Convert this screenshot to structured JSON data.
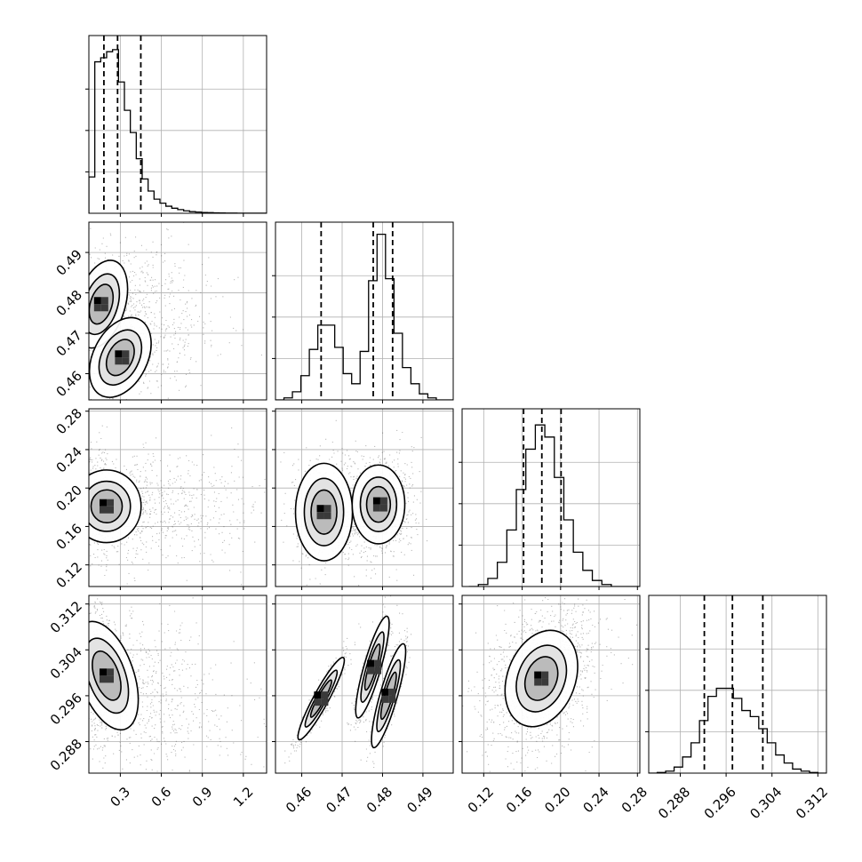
{
  "chart_data": {
    "type": "corner",
    "ylim_note": "",
    "params": [
      {
        "ticks": [
          0.3,
          0.6,
          0.9,
          1.2
        ],
        "tick_labels": [
          "0.3",
          "0.6",
          "0.9",
          "1.2"
        ],
        "range": [
          0.07,
          1.37
        ],
        "quantiles": [
          0.18,
          0.28,
          0.45
        ],
        "hist": [
          0.18,
          0.75,
          0.77,
          0.8,
          0.81,
          0.65,
          0.51,
          0.4,
          0.27,
          0.17,
          0.11,
          0.07,
          0.05,
          0.035,
          0.025,
          0.018,
          0.012,
          0.008,
          0.006,
          0.004,
          0.003,
          0.002,
          0.0015,
          0.001,
          0.001,
          0.0005,
          0.0005,
          0.0003,
          0.0002,
          0.0002
        ],
        "hist_range": [
          0.07,
          1.37
        ]
      },
      {
        "ticks": [
          0.46,
          0.47,
          0.48,
          0.49
        ],
        "tick_labels": [
          "0.46",
          "0.47",
          "0.48",
          "0.49"
        ],
        "range": [
          0.4535,
          0.4975
        ],
        "quantiles": [
          0.4648,
          0.4777,
          0.4825
        ],
        "hist": [
          0.0,
          0.01,
          0.04,
          0.12,
          0.25,
          0.37,
          0.37,
          0.26,
          0.13,
          0.08,
          0.24,
          0.59,
          0.82,
          0.6,
          0.33,
          0.16,
          0.08,
          0.03,
          0.01,
          0.0,
          0.0
        ],
        "hist_range": [
          0.4535,
          0.4975
        ]
      },
      {
        "ticks": [
          0.12,
          0.16,
          0.2,
          0.24,
          0.28
        ],
        "tick_labels": [
          "0.12",
          "0.16",
          "0.20",
          "0.24",
          "0.28"
        ],
        "range": [
          0.0975,
          0.2825
        ],
        "quantiles": [
          0.1615,
          0.1805,
          0.2005
        ],
        "hist": [
          0.0,
          0.01,
          0.04,
          0.12,
          0.28,
          0.48,
          0.68,
          0.8,
          0.74,
          0.54,
          0.33,
          0.17,
          0.08,
          0.03,
          0.01,
          0.0,
          0.0,
          0.0
        ],
        "hist_range": [
          0.1045,
          0.2825
        ]
      },
      {
        "ticks": [
          0.288,
          0.296,
          0.304,
          0.312
        ],
        "tick_labels": [
          "0.288",
          "0.296",
          "0.304",
          "0.312"
        ],
        "range": [
          0.2825,
          0.3135
        ],
        "quantiles": [
          0.2922,
          0.2971,
          0.3024
        ],
        "hist": [
          0.0,
          0.003,
          0.01,
          0.03,
          0.08,
          0.15,
          0.26,
          0.38,
          0.42,
          0.42,
          0.37,
          0.31,
          0.28,
          0.22,
          0.15,
          0.09,
          0.05,
          0.02,
          0.01,
          0.003,
          0.0
        ],
        "hist_range": [
          0.2825,
          0.3135
        ]
      }
    ],
    "pairs": [
      {
        "row": 1,
        "col": 0,
        "blobs": [
          {
            "cx": 0.16,
            "cy": 0.4772,
            "sx": 0.08,
            "sy": 0.0045,
            "rho": 0.35,
            "w": 0.62
          },
          {
            "cx": 0.3,
            "cy": 0.464,
            "sx": 0.08,
            "sy": 0.0035,
            "rho": 0.35,
            "w": 0.38
          }
        ]
      },
      {
        "row": 2,
        "col": 0,
        "blobs": [
          {
            "cx": 0.2,
            "cy": 0.181,
            "sx": 0.12,
            "sy": 0.018,
            "rho": 0.0,
            "w": 1.0
          }
        ]
      },
      {
        "row": 2,
        "col": 1,
        "blobs": [
          {
            "cx": 0.4655,
            "cy": 0.175,
            "sx": 0.0025,
            "sy": 0.018,
            "rho": 0.0,
            "w": 0.38
          },
          {
            "cx": 0.479,
            "cy": 0.183,
            "sx": 0.0027,
            "sy": 0.017,
            "rho": 0.0,
            "w": 0.62
          }
        ]
      },
      {
        "row": 3,
        "col": 0,
        "blobs": [
          {
            "cx": 0.2,
            "cy": 0.2995,
            "sx": 0.11,
            "sy": 0.0045,
            "rho": -0.45,
            "w": 1.0
          }
        ]
      },
      {
        "row": 3,
        "col": 1,
        "blobs": [
          {
            "cx": 0.4648,
            "cy": 0.2955,
            "sx": 0.002,
            "sy": 0.0025,
            "rho": 0.93,
            "w": 0.36
          },
          {
            "cx": 0.4775,
            "cy": 0.301,
            "sx": 0.0014,
            "sy": 0.003,
            "rho": 0.85,
            "w": 0.33
          },
          {
            "cx": 0.4815,
            "cy": 0.296,
            "sx": 0.0014,
            "sy": 0.003,
            "rho": 0.85,
            "w": 0.31
          }
        ]
      },
      {
        "row": 3,
        "col": 2,
        "blobs": [
          {
            "cx": 0.18,
            "cy": 0.299,
            "sx": 0.018,
            "sy": 0.004,
            "rho": 0.25,
            "w": 1.0
          }
        ]
      }
    ]
  }
}
